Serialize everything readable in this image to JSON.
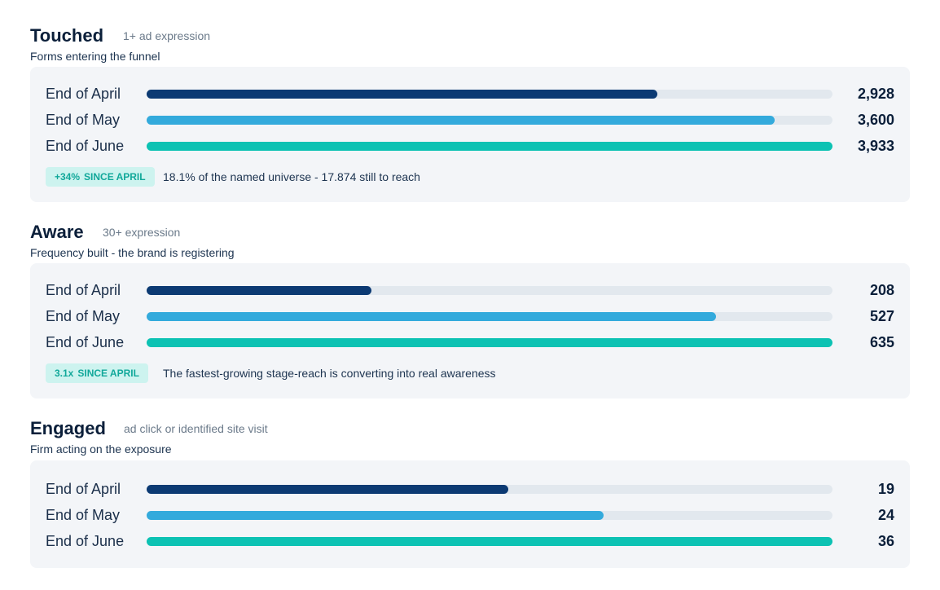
{
  "colors": {
    "april": "#0c3a73",
    "may": "#33aadc",
    "june": "#0cc2b3",
    "track": "#e2e8ee",
    "card": "#f3f5f8",
    "badge_bg": "#cdf3ef",
    "badge_text": "#11a89a"
  },
  "chart_data": [
    {
      "type": "bar",
      "orientation": "horizontal",
      "title": "Touched",
      "subtitle": "1+ ad expression",
      "description": "Forms entering the funnel",
      "categories": [
        "End of April",
        "End of May",
        "End of June"
      ],
      "values": [
        2928,
        3600,
        3933
      ],
      "value_labels": [
        "2,928",
        "3,600",
        "3,933"
      ],
      "xlim": [
        0,
        3933
      ],
      "badge": {
        "value": "+34%",
        "label": "SINCE APRIL"
      },
      "note": "18.1% of the named universe - 17.874 still to reach"
    },
    {
      "type": "bar",
      "orientation": "horizontal",
      "title": "Aware",
      "subtitle": "30+ expression",
      "description": "Frequency built - the brand is registering",
      "categories": [
        "End of April",
        "End of May",
        "End of June"
      ],
      "values": [
        208,
        527,
        635
      ],
      "value_labels": [
        "208",
        "527",
        "635"
      ],
      "xlim": [
        0,
        635
      ],
      "badge": {
        "value": "3.1x",
        "label": "SINCE APRIL"
      },
      "note": "The fastest-growing stage-reach is converting into real awareness"
    },
    {
      "type": "bar",
      "orientation": "horizontal",
      "title": "Engaged",
      "subtitle": "ad click or identified site visit",
      "description": "Firm acting on the exposure",
      "categories": [
        "End of April",
        "End of May",
        "End of June"
      ],
      "values": [
        19,
        24,
        36
      ],
      "value_labels": [
        "19",
        "24",
        "36"
      ],
      "xlim": [
        0,
        36
      ]
    }
  ]
}
